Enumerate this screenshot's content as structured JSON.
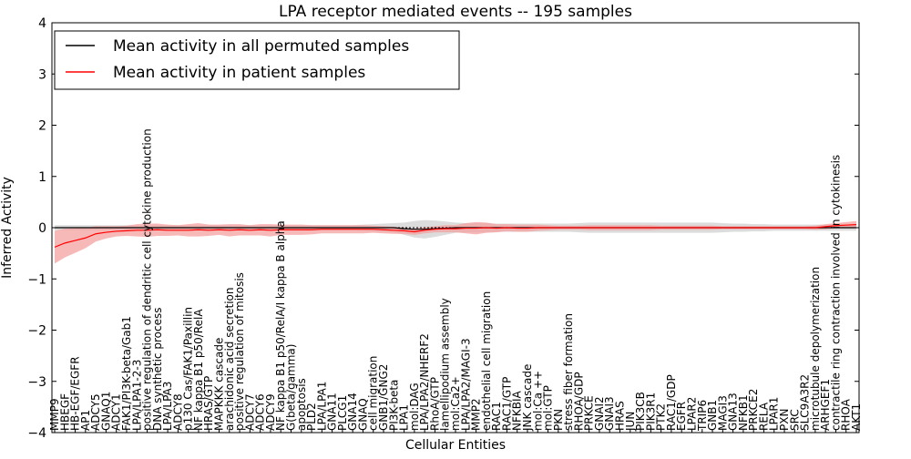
{
  "chart_data": {
    "type": "line",
    "title": "LPA receptor mediated events -- 195 samples",
    "xlabel": "Cellular Entities",
    "ylabel": "Inferred Activity",
    "ylim": [
      -4,
      4
    ],
    "yticks": [
      -4,
      -3,
      -2,
      -1,
      0,
      1,
      2,
      3,
      4
    ],
    "ytick_labels": [
      "−4",
      "−3",
      "−2",
      "−1",
      "0",
      "1",
      "2",
      "3",
      "4"
    ],
    "legend_position": "upper-left",
    "categories": [
      "MMP9",
      "HBEGF",
      "HB-EGF/EGFR",
      "AP1",
      "ADCY5",
      "GNAQ1",
      "ADCY1",
      "FAK1/PI3K-beta/Gab1",
      "LPA/LPA1-2-3",
      "positive regulation of dendritic cell cytokine production",
      "DNA synthetic process",
      "LPA/LPA3",
      "ADCY8",
      "p130 Cas/FAK1/Paxillin",
      "NF kappa B1 p50/RelA",
      "HRAS/GTP",
      "MAPKKK cascade",
      "arachidonic acid secretion",
      "positive regulation of mitosis",
      "ADCY7",
      "ADCY6",
      "ADCY9",
      "NF kappa B1 p50/RelA/I kappa B alpha",
      "G(beta/gamma)",
      "apoptosis",
      "PLD2",
      "LPA/LPA1",
      "GNA11",
      "PLCG1",
      "GNA14",
      "GNAQ",
      "cell migration",
      "GNB1/GNG2",
      "PI3K-beta",
      "LPA1",
      "mol:DAG",
      "LPA/LPA2/NHERF2",
      "RhoA/GTP",
      "lamellipodium assembly",
      "mol:Ca2+",
      "LPA/LPA2/MAGI-3",
      "MMP2",
      "endothelial cell migration",
      "RAC1",
      "RAC1/GTP",
      "NFKBIA",
      "JNK cascade",
      "mol:Ca ++",
      "mol:GTP",
      "PKN",
      "stress fiber formation",
      "RHOA/GDP",
      "PRKCE",
      "GNAI2",
      "GNAI3",
      "HRAS",
      "JUN",
      "PIK3CB",
      "PIK3R1",
      "PTK2",
      "RAC1/GDP",
      "EGFR",
      "LPAR2",
      "TRIP6",
      "GNB1",
      "MAGI3",
      "GNA13",
      "NFKB1",
      "PRKCE2",
      "RELA",
      "LPAR1",
      "PXN",
      "SRC",
      "SLC9A3R2",
      "microtubule depolymerization",
      "ARHGEF1",
      "contractile ring contraction involved in cytokinesis",
      "RHOA",
      "AKT1"
    ],
    "series": [
      {
        "name": "Mean activity in all permuted samples",
        "color": "#000000",
        "band_color": "#c0c0c0",
        "values": [
          0,
          0,
          0,
          0,
          0,
          0,
          0,
          0,
          0,
          0,
          0,
          0,
          0,
          0,
          0,
          0,
          0,
          0,
          0,
          0,
          0,
          0,
          0,
          0,
          0,
          0,
          0,
          0,
          0,
          0,
          0,
          0,
          0,
          0,
          -0.02,
          -0.03,
          -0.03,
          -0.02,
          -0.01,
          0,
          0,
          0,
          0,
          0,
          0,
          0,
          0,
          0,
          0,
          0,
          0,
          0,
          0,
          0,
          0,
          0,
          0,
          0,
          0,
          0,
          0,
          0,
          0,
          0,
          0,
          0,
          0,
          0,
          0,
          0,
          0,
          0,
          0,
          0,
          0,
          0,
          0,
          0,
          0
        ],
        "band_half_width": [
          0.05,
          0.05,
          0.05,
          0.05,
          0.05,
          0.05,
          0.05,
          0.05,
          0.05,
          0.05,
          0.05,
          0.05,
          0.05,
          0.05,
          0.05,
          0.05,
          0.05,
          0.05,
          0.05,
          0.05,
          0.05,
          0.05,
          0.05,
          0.05,
          0.05,
          0.05,
          0.05,
          0.05,
          0.05,
          0.05,
          0.06,
          0.07,
          0.08,
          0.09,
          0.12,
          0.16,
          0.18,
          0.16,
          0.13,
          0.1,
          0.09,
          0.09,
          0.09,
          0.08,
          0.08,
          0.08,
          0.08,
          0.08,
          0.08,
          0.08,
          0.08,
          0.09,
          0.1,
          0.1,
          0.1,
          0.1,
          0.1,
          0.1,
          0.1,
          0.1,
          0.1,
          0.1,
          0.1,
          0.1,
          0.1,
          0.09,
          0.08,
          0.08,
          0.07,
          0.07,
          0.06,
          0.06,
          0.06,
          0.06,
          0.06,
          0.06,
          0.06,
          0.06,
          0.06
        ]
      },
      {
        "name": "Mean activity in patient samples",
        "color": "#ff0000",
        "band_color": "#f4a0a0",
        "values": [
          -0.38,
          -0.3,
          -0.25,
          -0.2,
          -0.12,
          -0.09,
          -0.07,
          -0.06,
          -0.05,
          -0.05,
          -0.04,
          -0.05,
          -0.05,
          -0.05,
          -0.04,
          -0.05,
          -0.04,
          -0.05,
          -0.04,
          -0.05,
          -0.04,
          -0.05,
          -0.04,
          -0.04,
          -0.04,
          -0.04,
          -0.03,
          -0.03,
          -0.03,
          -0.03,
          -0.03,
          -0.03,
          -0.04,
          -0.05,
          -0.06,
          -0.08,
          -0.05,
          -0.03,
          -0.02,
          -0.02,
          -0.01,
          -0.01,
          0,
          -0.01,
          0,
          -0.01,
          -0.01,
          0,
          0,
          0,
          0,
          0,
          0,
          0,
          0,
          0,
          0,
          0,
          0,
          0,
          0,
          0,
          0,
          0,
          0,
          0,
          0,
          0,
          0,
          0,
          0,
          0,
          0,
          0,
          0,
          0.02,
          0.04,
          0.05,
          0.06
        ],
        "band_half_width": [
          0.32,
          0.28,
          0.24,
          0.2,
          0.15,
          0.12,
          0.1,
          0.1,
          0.12,
          0.13,
          0.12,
          0.11,
          0.1,
          0.12,
          0.13,
          0.11,
          0.1,
          0.12,
          0.11,
          0.1,
          0.11,
          0.12,
          0.1,
          0.1,
          0.1,
          0.09,
          0.08,
          0.08,
          0.08,
          0.08,
          0.08,
          0.07,
          0.07,
          0.07,
          0.06,
          0.06,
          0.06,
          0.06,
          0.07,
          0.07,
          0.1,
          0.12,
          0.1,
          0.08,
          0.07,
          0.07,
          0.07,
          0.06,
          0.05,
          0.04,
          0.04,
          0.04,
          0.05,
          0.05,
          0.05,
          0.05,
          0.05,
          0.05,
          0.05,
          0.04,
          0.04,
          0.04,
          0.04,
          0.04,
          0.04,
          0.03,
          0.03,
          0.03,
          0.03,
          0.03,
          0.03,
          0.03,
          0.03,
          0.03,
          0.04,
          0.05,
          0.05,
          0.06,
          0.07
        ]
      }
    ]
  }
}
